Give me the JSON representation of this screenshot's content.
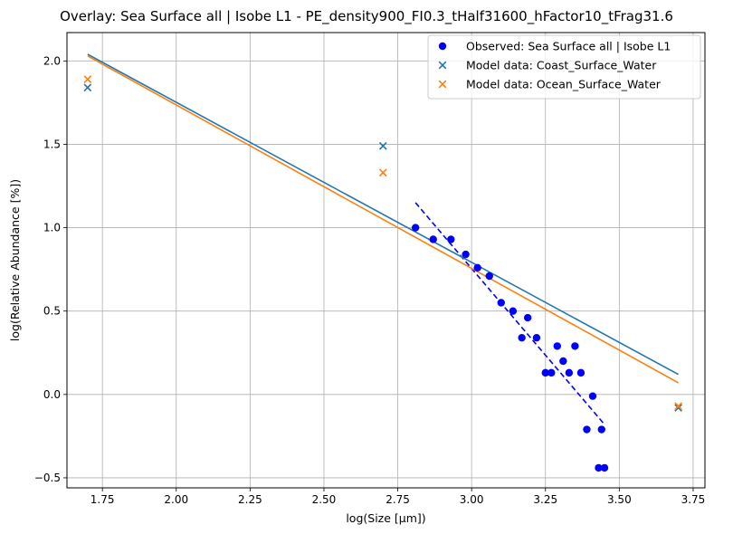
{
  "chart_data": {
    "type": "scatter",
    "title": "Overlay: Sea Surface all | Isobe L1 - PE_density900_FI0.3_tHalf31600_hFactor10_tFrag31.6",
    "xlabel": "log(Size [µm])",
    "ylabel": "log(Relative Abundance [%])",
    "xlim": [
      1.63,
      3.79
    ],
    "ylim": [
      -0.56,
      2.17
    ],
    "x_ticks": [
      1.75,
      2.0,
      2.25,
      2.5,
      2.75,
      3.0,
      3.25,
      3.5,
      3.75
    ],
    "x_tick_labels": [
      "1.75",
      "2.00",
      "2.25",
      "2.50",
      "2.75",
      "3.00",
      "3.25",
      "3.50",
      "3.75"
    ],
    "y_ticks": [
      -0.5,
      0.0,
      0.5,
      1.0,
      1.5,
      2.0
    ],
    "y_tick_labels": [
      "−0.5",
      "0.0",
      "0.5",
      "1.0",
      "1.5",
      "2.0"
    ],
    "grid": true,
    "legend_position": "top-right",
    "series": [
      {
        "name": "Observed: Sea Surface all | Isobe L1",
        "marker": "circle",
        "color": "#0000ff",
        "points": [
          [
            2.81,
            1.0
          ],
          [
            2.87,
            0.93
          ],
          [
            2.93,
            0.93
          ],
          [
            2.98,
            0.84
          ],
          [
            3.02,
            0.76
          ],
          [
            3.06,
            0.71
          ],
          [
            3.1,
            0.55
          ],
          [
            3.14,
            0.5
          ],
          [
            3.19,
            0.46
          ],
          [
            3.17,
            0.34
          ],
          [
            3.22,
            0.34
          ],
          [
            3.29,
            0.29
          ],
          [
            3.35,
            0.29
          ],
          [
            3.31,
            0.2
          ],
          [
            3.25,
            0.13
          ],
          [
            3.27,
            0.13
          ],
          [
            3.33,
            0.13
          ],
          [
            3.37,
            0.13
          ],
          [
            3.41,
            -0.01
          ],
          [
            3.39,
            -0.21
          ],
          [
            3.44,
            -0.21
          ],
          [
            3.43,
            -0.44
          ],
          [
            3.45,
            -0.44
          ]
        ]
      },
      {
        "name": "Model data: Coast_Surface_Water",
        "marker": "x",
        "color": "#1f77b4",
        "points": [
          [
            1.7,
            1.84
          ],
          [
            2.7,
            1.49
          ],
          [
            3.7,
            -0.08
          ]
        ]
      },
      {
        "name": "Model data: Ocean_Surface_Water",
        "marker": "x",
        "color": "#ff7f0e",
        "points": [
          [
            1.7,
            1.89
          ],
          [
            2.7,
            1.33
          ],
          [
            3.7,
            -0.07
          ]
        ]
      }
    ],
    "lines": [
      {
        "color": "#0000ff",
        "style": "dashed",
        "points": [
          [
            2.81,
            1.15
          ],
          [
            3.45,
            -0.18
          ]
        ]
      },
      {
        "color": "#1f77b4",
        "style": "solid",
        "points": [
          [
            1.7,
            2.04
          ],
          [
            3.7,
            0.12
          ]
        ]
      },
      {
        "color": "#ff7f0e",
        "style": "solid",
        "points": [
          [
            1.7,
            2.03
          ],
          [
            3.7,
            0.07
          ]
        ]
      }
    ]
  }
}
